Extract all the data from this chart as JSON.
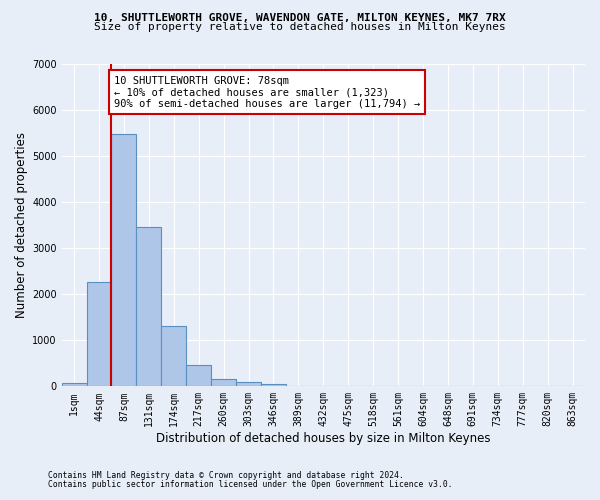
{
  "title_line1": "10, SHUTTLEWORTH GROVE, WAVENDON GATE, MILTON KEYNES, MK7 7RX",
  "title_line2": "Size of property relative to detached houses in Milton Keynes",
  "xlabel": "Distribution of detached houses by size in Milton Keynes",
  "ylabel": "Number of detached properties",
  "footnote1": "Contains HM Land Registry data © Crown copyright and database right 2024.",
  "footnote2": "Contains public sector information licensed under the Open Government Licence v3.0.",
  "bar_labels": [
    "1sqm",
    "44sqm",
    "87sqm",
    "131sqm",
    "174sqm",
    "217sqm",
    "260sqm",
    "303sqm",
    "346sqm",
    "389sqm",
    "432sqm",
    "475sqm",
    "518sqm",
    "561sqm",
    "604sqm",
    "648sqm",
    "691sqm",
    "734sqm",
    "777sqm",
    "820sqm",
    "863sqm"
  ],
  "bar_values": [
    80,
    2270,
    5480,
    3450,
    1320,
    460,
    155,
    85,
    55,
    0,
    0,
    0,
    0,
    0,
    0,
    0,
    0,
    0,
    0,
    0,
    0
  ],
  "bar_color": "#aec6e8",
  "bar_edgecolor": "#5a8fc2",
  "ylim": [
    0,
    7000
  ],
  "yticks": [
    0,
    1000,
    2000,
    3000,
    4000,
    5000,
    6000,
    7000
  ],
  "annotation_text": "10 SHUTTLEWORTH GROVE: 78sqm\n← 10% of detached houses are smaller (1,323)\n90% of semi-detached houses are larger (11,794) →",
  "annotation_box_color": "#ffffff",
  "annotation_box_edgecolor": "#cc0000",
  "redline_x": 1.5,
  "background_color": "#e8eef8",
  "grid_color": "#ffffff",
  "title1_fontsize": 8.0,
  "title2_fontsize": 8.0,
  "xlabel_fontsize": 8.5,
  "ylabel_fontsize": 8.5,
  "tick_fontsize": 7.0,
  "annot_fontsize": 7.5,
  "footnote_fontsize": 5.8
}
